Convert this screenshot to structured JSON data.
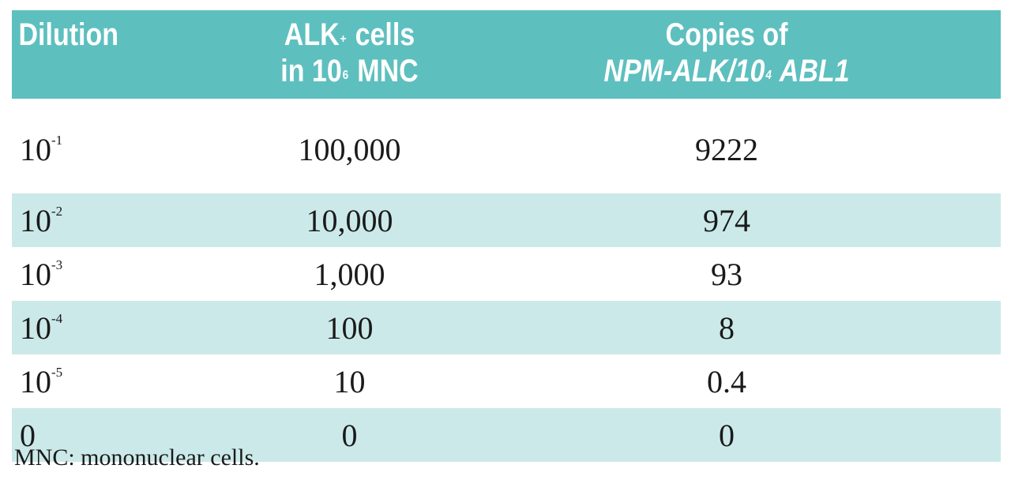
{
  "header": {
    "dilution": "Dilution",
    "alk_line1_base": "ALK",
    "alk_line1_sup": "+",
    "alk_line1_rest": " cells",
    "alk_line2_base": "in 10",
    "alk_line2_sup": "6",
    "alk_line2_rest": " MNC",
    "copies_line1": "Copies of",
    "copies_line2_gene": "NPM-ALK",
    "copies_line2_mid": "/10",
    "copies_line2_sup": "4",
    "copies_line2_ref": " ABL1"
  },
  "rows": [
    {
      "dil_base": "10",
      "dil_exp": "-1",
      "alk": "100,000",
      "copies": "9222"
    },
    {
      "dil_base": "10",
      "dil_exp": "-2",
      "alk": "10,000",
      "copies": "974"
    },
    {
      "dil_base": "10",
      "dil_exp": "-3",
      "alk": "1,000",
      "copies": "93"
    },
    {
      "dil_base": "10",
      "dil_exp": "-4",
      "alk": "100",
      "copies": "8"
    },
    {
      "dil_base": "10",
      "dil_exp": "-5",
      "alk": "10",
      "copies": "0.4"
    },
    {
      "dil_base": "0",
      "dil_exp": "",
      "alk": "0",
      "copies": "0"
    }
  ],
  "footnote": "MNC: mononuclear cells.",
  "colors": {
    "header_bg": "#5ebfbf",
    "row_shade": "#cce9e9",
    "header_text": "#ffffff"
  }
}
